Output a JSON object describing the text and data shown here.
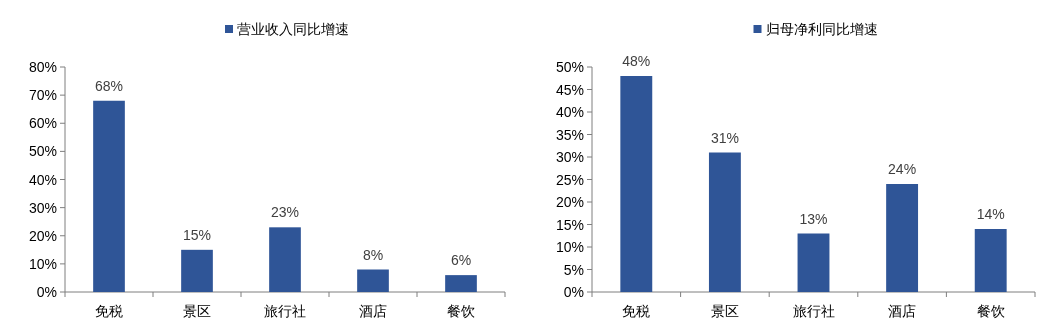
{
  "chart_data": [
    {
      "type": "bar",
      "categories": [
        "免税",
        "景区",
        "旅行社",
        "酒店",
        "餐饮"
      ],
      "series": [
        {
          "name": "营业收入同比增速",
          "color": "#2f5597",
          "values": [
            68,
            15,
            23,
            8,
            6
          ],
          "value_labels": [
            "68%",
            "15%",
            "23%",
            "8%",
            "6%"
          ]
        }
      ],
      "ylim": [
        0,
        80
      ],
      "yticks": [
        {
          "value": 0,
          "label": "0%"
        },
        {
          "value": 10,
          "label": "10%"
        },
        {
          "value": 20,
          "label": "20%"
        },
        {
          "value": 30,
          "label": "30%"
        },
        {
          "value": 40,
          "label": "40%"
        },
        {
          "value": 50,
          "label": "50%"
        },
        {
          "value": 60,
          "label": "60%"
        },
        {
          "value": 70,
          "label": "70%"
        },
        {
          "value": 80,
          "label": "80%"
        }
      ],
      "legend": "top"
    },
    {
      "type": "bar",
      "categories": [
        "免税",
        "景区",
        "旅行社",
        "酒店",
        "餐饮"
      ],
      "series": [
        {
          "name": "归母净利同比增速",
          "color": "#2f5597",
          "values": [
            48,
            31,
            13,
            24,
            14
          ],
          "value_labels": [
            "48%",
            "31%",
            "13%",
            "24%",
            "14%"
          ]
        }
      ],
      "ylim": [
        0,
        50
      ],
      "yticks": [
        {
          "value": 0,
          "label": "0%"
        },
        {
          "value": 5,
          "label": "5%"
        },
        {
          "value": 10,
          "label": "10%"
        },
        {
          "value": 15,
          "label": "15%"
        },
        {
          "value": 20,
          "label": "20%"
        },
        {
          "value": 25,
          "label": "25%"
        },
        {
          "value": 30,
          "label": "30%"
        },
        {
          "value": 35,
          "label": "35%"
        },
        {
          "value": 40,
          "label": "40%"
        },
        {
          "value": 45,
          "label": "45%"
        },
        {
          "value": 50,
          "label": "50%"
        }
      ],
      "legend": "top"
    }
  ]
}
